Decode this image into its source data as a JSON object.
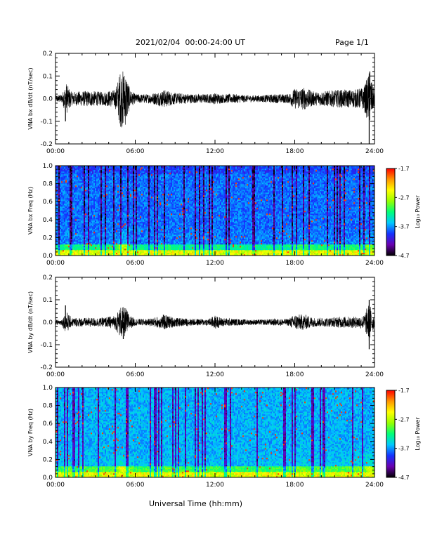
{
  "header": {
    "title": "2021/02/04  00:00-24:00 UT",
    "page": "Page 1/1"
  },
  "x_axis_label": "Universal Time (hh:mm)",
  "colors": {
    "trace": "#000000",
    "colormap": [
      "#000000",
      "#6a00b0",
      "#1432ff",
      "#00c8ff",
      "#00ff78",
      "#96ff00",
      "#ffff00",
      "#ff9600",
      "#ff0000"
    ]
  },
  "chart_data": [
    {
      "type": "line",
      "panel": "bx-waveform",
      "ylabel": "VNA bx dB/dt (nT/sec)",
      "x_ticks": [
        "00:00",
        "06:00",
        "12:00",
        "18:00",
        "24:00"
      ],
      "xlim": [
        0,
        24
      ],
      "ylim": [
        -0.2,
        0.2
      ],
      "y_ticks": [
        "0.2",
        "0.1",
        "0.0",
        "-0.1",
        "-0.2"
      ],
      "envelope": {
        "x_hours": [
          0,
          0.5,
          0.8,
          1.2,
          2.5,
          3.5,
          4.5,
          4.9,
          5.3,
          5.6,
          6.0,
          7.0,
          8.0,
          8.2,
          9.0,
          10.5,
          11.5,
          12.0,
          12.5,
          13.5,
          14.5,
          15.5,
          16.5,
          17.5,
          18.0,
          18.7,
          19.5,
          20.5,
          21.5,
          22.5,
          23.2,
          23.6,
          24
        ],
        "amplitude": [
          0.015,
          0.02,
          0.07,
          0.03,
          0.035,
          0.03,
          0.04,
          0.13,
          0.12,
          0.04,
          0.02,
          0.02,
          0.035,
          0.04,
          0.025,
          0.02,
          0.02,
          0.025,
          0.02,
          0.02,
          0.015,
          0.015,
          0.02,
          0.02,
          0.045,
          0.05,
          0.03,
          0.035,
          0.04,
          0.04,
          0.05,
          0.12,
          0.03
        ]
      },
      "spikes": [
        {
          "x": 0.75,
          "y": -0.1
        },
        {
          "x": 5.0,
          "y": -0.11
        },
        {
          "x": 23.6,
          "y": -0.2
        },
        {
          "x": 23.65,
          "y": 0.12
        }
      ]
    },
    {
      "type": "heatmap",
      "panel": "bx-spectrogram",
      "ylabel": "VNA bx Freq (Hz)",
      "x_ticks": [
        "00:00",
        "06:00",
        "12:00",
        "18:00",
        "24:00"
      ],
      "xlim": [
        0,
        24
      ],
      "ylim": [
        0,
        1.0
      ],
      "y_ticks": [
        "1.0",
        "0.8",
        "0.6",
        "0.4",
        "0.2",
        "0.0"
      ],
      "colorbar": {
        "label": "Log₁₀ Power",
        "ticks": [
          "-1.7",
          "-2.7",
          "-3.7",
          "-4.7"
        ],
        "range": [
          -4.7,
          -1.7
        ]
      }
    },
    {
      "type": "line",
      "panel": "by-waveform",
      "ylabel": "VNA by dB/dt (nT/sec)",
      "x_ticks": [
        "00:00",
        "06:00",
        "12:00",
        "18:00",
        "24:00"
      ],
      "xlim": [
        0,
        24
      ],
      "ylim": [
        -0.2,
        0.2
      ],
      "y_ticks": [
        "0.2",
        "0.1",
        "0.0",
        "-0.1",
        "-0.2"
      ],
      "envelope": {
        "x_hours": [
          0,
          0.5,
          0.8,
          1.2,
          2.5,
          3.5,
          4.5,
          4.9,
          5.3,
          5.6,
          6.0,
          7.0,
          8.0,
          8.2,
          9.0,
          10.5,
          11.5,
          12.0,
          12.5,
          13.5,
          14.5,
          15.5,
          16.5,
          17.5,
          18.0,
          18.7,
          19.5,
          20.5,
          21.5,
          22.5,
          23.2,
          23.6,
          24
        ],
        "amplitude": [
          0.01,
          0.015,
          0.05,
          0.02,
          0.02,
          0.02,
          0.03,
          0.07,
          0.065,
          0.03,
          0.015,
          0.015,
          0.03,
          0.035,
          0.02,
          0.015,
          0.015,
          0.03,
          0.02,
          0.015,
          0.012,
          0.012,
          0.015,
          0.015,
          0.035,
          0.035,
          0.02,
          0.02,
          0.025,
          0.025,
          0.03,
          0.09,
          0.02
        ]
      },
      "spikes": [
        {
          "x": 0.75,
          "y": 0.075
        },
        {
          "x": 5.1,
          "y": -0.075
        },
        {
          "x": 23.6,
          "y": -0.12
        },
        {
          "x": 23.6,
          "y": 0.1
        }
      ]
    },
    {
      "type": "heatmap",
      "panel": "by-spectrogram",
      "ylabel": "VNA by Freq (Hz)",
      "x_ticks": [
        "00:00",
        "06:00",
        "12:00",
        "18:00",
        "24:00"
      ],
      "xlim": [
        0,
        24
      ],
      "ylim": [
        0,
        1.0
      ],
      "y_ticks": [
        "1.0",
        "0.8",
        "0.6",
        "0.4",
        "0.2",
        "0.0"
      ],
      "colorbar": {
        "label": "Log₁₀ Power",
        "ticks": [
          "-1.7",
          "-2.7",
          "-3.7",
          "-4.7"
        ],
        "range": [
          -4.7,
          -1.7
        ]
      }
    }
  ]
}
